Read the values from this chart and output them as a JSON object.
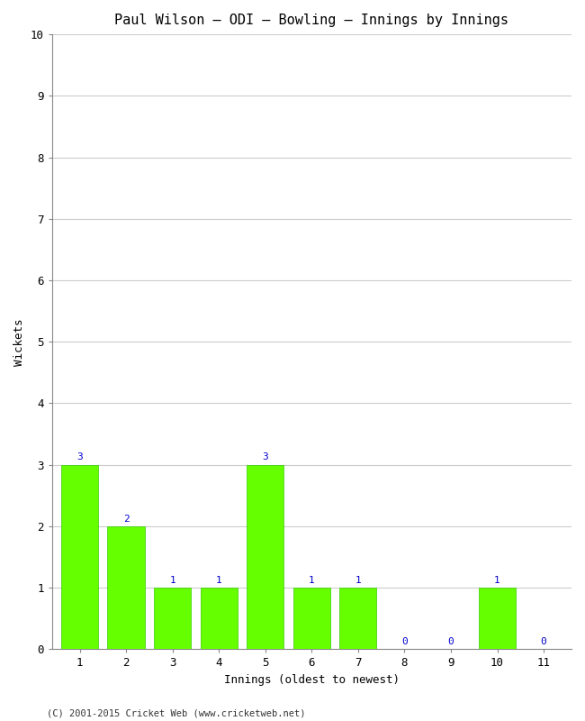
{
  "title": "Paul Wilson – ODI – Bowling – Innings by Innings",
  "xlabel": "Innings (oldest to newest)",
  "ylabel": "Wickets",
  "categories": [
    1,
    2,
    3,
    4,
    5,
    6,
    7,
    8,
    9,
    10,
    11
  ],
  "values": [
    3,
    2,
    1,
    1,
    3,
    1,
    1,
    0,
    0,
    1,
    0
  ],
  "bar_color": "#66ff00",
  "bar_edge_color": "#33cc00",
  "label_color": "#0000cc",
  "ylim": [
    0,
    10
  ],
  "yticks": [
    0,
    1,
    2,
    3,
    4,
    5,
    6,
    7,
    8,
    9,
    10
  ],
  "background_color": "#ffffff",
  "plot_bg_color": "#ffffff",
  "grid_color": "#cccccc",
  "title_fontsize": 11,
  "label_fontsize": 9,
  "tick_fontsize": 9,
  "annotation_fontsize": 8,
  "footer": "(C) 2001-2015 Cricket Web (www.cricketweb.net)",
  "footer_fontsize": 7.5
}
